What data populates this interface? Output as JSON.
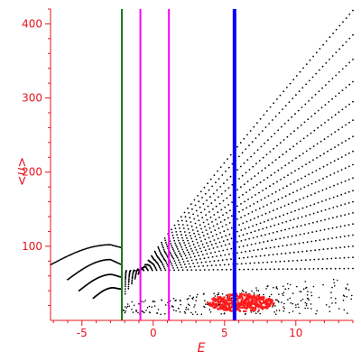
{
  "chart_data": {
    "type": "scatter",
    "title": "",
    "xlabel": "E",
    "ylabel": "<n>",
    "xlim": [
      -7.2,
      14
    ],
    "ylim": [
      0,
      420
    ],
    "x_ticks": [
      -5,
      0,
      5,
      10
    ],
    "y_ticks": [
      100,
      200,
      300,
      400
    ],
    "x_tick_labels": [
      "-5",
      "0",
      "5",
      "10"
    ],
    "y_tick_labels": [
      "100",
      "200",
      "300",
      "400"
    ],
    "grid": false,
    "legend": "none",
    "colors": {
      "axis": "#e8141e",
      "curves": "#000000",
      "cluster": "#ff1a1a",
      "green_line": "#1a7a1a",
      "magenta_lines": "#ff00ff",
      "blue_line": "#0000ff"
    },
    "curve_family": {
      "count": 18,
      "x_start": -2.2,
      "x_end": 14,
      "y_start": [
        28,
        32,
        36,
        40,
        43,
        46,
        49,
        52,
        54,
        56,
        58,
        60,
        62,
        63,
        64,
        65,
        66,
        67
      ],
      "y_end": [
        418,
        385,
        352,
        322,
        295,
        270,
        248,
        228,
        210,
        192,
        175,
        160,
        145,
        130,
        115,
        100,
        85,
        70
      ]
    },
    "left_branches": [
      {
        "x_start": -7.2,
        "y_start": 75,
        "x_peak": -3.0,
        "y_peak": 102,
        "x_end": -2.2,
        "y_end": 98
      },
      {
        "x_start": -6.0,
        "y_start": 55,
        "x_peak": -3.0,
        "y_peak": 82,
        "x_end": -2.2,
        "y_end": 75
      },
      {
        "x_start": -5.2,
        "y_start": 40,
        "x_peak": -2.9,
        "y_peak": 62,
        "x_end": -2.2,
        "y_end": 58
      },
      {
        "x_start": -4.2,
        "y_start": 30,
        "x_peak": -2.8,
        "y_peak": 44,
        "x_end": -2.2,
        "y_end": 42
      }
    ],
    "bottom_band": {
      "x_start": -2.2,
      "x_end": 14,
      "y_min": 8,
      "y_max": 60
    },
    "red_cluster": {
      "x_min": 3.8,
      "x_max": 8.5,
      "y_min": 12,
      "y_max": 36
    },
    "vertical_lines": [
      {
        "x": -2.2,
        "color": "#1a7a1a",
        "width": 2
      },
      {
        "x": -0.9,
        "color": "#ff00ff",
        "width": 2
      },
      {
        "x": 1.1,
        "color": "#ff00ff",
        "width": 2
      },
      {
        "x": 5.7,
        "color": "#0000ff",
        "width": 4
      }
    ]
  }
}
